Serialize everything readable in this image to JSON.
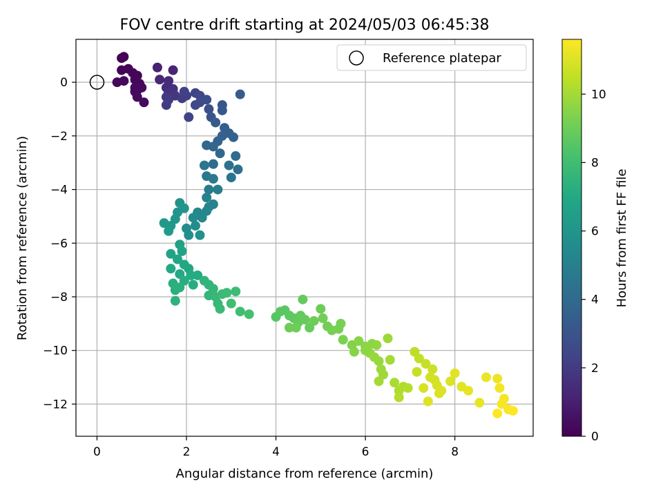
{
  "chart_data": {
    "type": "scatter",
    "title": "FOV centre drift starting at 2024/05/03 06:45:38",
    "xlabel": "Angular distance from reference (arcmin)",
    "ylabel": "Rotation from reference (arcmin)",
    "xlim": [
      -0.47,
      9.75
    ],
    "ylim": [
      -13.2,
      1.6
    ],
    "xticks": [
      0,
      2,
      4,
      6,
      8
    ],
    "xtick_labels": [
      "0",
      "2",
      "4",
      "6",
      "8"
    ],
    "yticks": [
      0,
      -2,
      -4,
      -6,
      -8,
      -10,
      -12
    ],
    "ytick_labels": [
      "0",
      "−2",
      "−4",
      "−6",
      "−8",
      "−10",
      "−12"
    ],
    "grid": true,
    "legend": {
      "placement": "top-right",
      "label": "Reference platepar"
    },
    "reference_point": {
      "x": 0,
      "y": 0
    },
    "colorbar": {
      "label": "Hours from first FF file",
      "range": [
        0,
        11.6
      ],
      "ticks": [
        0,
        2,
        4,
        6,
        8,
        10
      ],
      "tick_labels": [
        "0",
        "2",
        "4",
        "6",
        "8",
        "10"
      ],
      "colormap": "viridis",
      "colors": [
        "#440154",
        "#482475",
        "#414487",
        "#355f8d",
        "#2a788e",
        "#21918c",
        "#22a884",
        "#44bf70",
        "#7ad151",
        "#bddf26",
        "#fde725"
      ]
    },
    "points": [
      [
        0.6,
        0.95,
        0.05
      ],
      [
        0.55,
        0.9,
        0.05
      ],
      [
        0.7,
        0.5,
        0.1
      ],
      [
        0.55,
        0.45,
        0.1
      ],
      [
        0.8,
        0.35,
        0.15
      ],
      [
        0.9,
        0.25,
        0.15
      ],
      [
        0.6,
        0.05,
        0.2
      ],
      [
        0.45,
        0.0,
        0.2
      ],
      [
        0.85,
        0.1,
        0.2
      ],
      [
        0.95,
        -0.05,
        0.25
      ],
      [
        0.9,
        -0.3,
        0.25
      ],
      [
        0.85,
        -0.35,
        0.3
      ],
      [
        0.9,
        -0.55,
        0.3
      ],
      [
        1.05,
        -0.75,
        0.35
      ],
      [
        1.0,
        -0.2,
        0.3
      ],
      [
        0.85,
        -0.2,
        0.3
      ],
      [
        1.35,
        0.55,
        1.1
      ],
      [
        1.7,
        0.45,
        1.2
      ],
      [
        1.4,
        0.1,
        1.3
      ],
      [
        1.6,
        0.05,
        1.4
      ],
      [
        1.55,
        -0.2,
        1.5
      ],
      [
        1.7,
        -0.25,
        1.6
      ],
      [
        1.6,
        -0.4,
        1.7
      ],
      [
        1.75,
        -0.5,
        1.8
      ],
      [
        1.55,
        -0.55,
        1.9
      ],
      [
        1.6,
        -0.65,
        2.0
      ],
      [
        1.55,
        -0.85,
        2.0
      ],
      [
        1.9,
        -0.6,
        2.1
      ],
      [
        2.0,
        -0.5,
        2.1
      ],
      [
        1.95,
        -0.35,
        2.2
      ],
      [
        2.05,
        -1.3,
        2.3
      ],
      [
        2.2,
        -0.4,
        2.3
      ],
      [
        2.3,
        -0.5,
        2.4
      ],
      [
        2.2,
        -0.85,
        2.5
      ],
      [
        2.3,
        -0.75,
        2.6
      ],
      [
        2.45,
        -0.65,
        2.7
      ],
      [
        2.5,
        -1.0,
        2.8
      ],
      [
        2.55,
        -1.3,
        3.0
      ],
      [
        2.8,
        -0.85,
        3.1
      ],
      [
        2.8,
        -1.05,
        3.2
      ],
      [
        2.65,
        -1.5,
        3.3
      ],
      [
        3.2,
        -0.45,
        3.3
      ],
      [
        2.85,
        -1.7,
        3.4
      ],
      [
        2.95,
        -1.9,
        3.5
      ],
      [
        3.05,
        -2.05,
        3.6
      ],
      [
        2.8,
        -2.0,
        3.6
      ],
      [
        2.7,
        -2.2,
        3.7
      ],
      [
        2.6,
        -2.4,
        3.8
      ],
      [
        2.45,
        -2.35,
        3.8
      ],
      [
        2.75,
        -2.65,
        3.9
      ],
      [
        2.6,
        -3.05,
        4.0
      ],
      [
        3.1,
        -2.75,
        4.1
      ],
      [
        3.15,
        -3.25,
        4.2
      ],
      [
        2.95,
        -3.1,
        4.3
      ],
      [
        3.0,
        -3.55,
        4.4
      ],
      [
        2.4,
        -3.1,
        4.5
      ],
      [
        2.45,
        -3.5,
        4.6
      ],
      [
        2.6,
        -3.6,
        4.7
      ],
      [
        2.5,
        -4.0,
        4.8
      ],
      [
        2.7,
        -4.0,
        4.9
      ],
      [
        2.45,
        -4.3,
        5.0
      ],
      [
        2.5,
        -4.65,
        5.2
      ],
      [
        2.6,
        -4.55,
        5.2
      ],
      [
        2.45,
        -4.8,
        5.3
      ],
      [
        2.25,
        -4.85,
        5.4
      ],
      [
        2.35,
        -5.05,
        5.4
      ],
      [
        2.15,
        -5.05,
        5.5
      ],
      [
        2.2,
        -5.35,
        5.6
      ],
      [
        2.0,
        -5.45,
        5.6
      ],
      [
        2.05,
        -5.7,
        5.7
      ],
      [
        2.3,
        -5.7,
        5.8
      ],
      [
        1.85,
        -4.5,
        5.9
      ],
      [
        1.95,
        -4.7,
        6.0
      ],
      [
        1.8,
        -4.85,
        6.0
      ],
      [
        1.75,
        -5.1,
        6.1
      ],
      [
        1.5,
        -5.25,
        6.2
      ],
      [
        1.65,
        -5.35,
        6.2
      ],
      [
        1.6,
        -5.55,
        6.3
      ],
      [
        1.85,
        -6.05,
        6.6
      ],
      [
        1.9,
        -6.3,
        6.7
      ],
      [
        1.65,
        -6.4,
        6.7
      ],
      [
        1.8,
        -6.6,
        6.8
      ],
      [
        1.95,
        -6.8,
        6.9
      ],
      [
        2.05,
        -6.95,
        6.9
      ],
      [
        1.65,
        -6.95,
        7.0
      ],
      [
        1.85,
        -7.15,
        7.0
      ],
      [
        2.1,
        -7.2,
        7.1
      ],
      [
        2.25,
        -7.2,
        7.1
      ],
      [
        1.95,
        -7.4,
        7.2
      ],
      [
        2.15,
        -7.55,
        7.2
      ],
      [
        1.85,
        -7.65,
        7.3
      ],
      [
        1.7,
        -7.5,
        7.3
      ],
      [
        1.75,
        -7.75,
        7.3
      ],
      [
        1.75,
        -8.15,
        7.4
      ],
      [
        2.4,
        -7.4,
        7.5
      ],
      [
        2.5,
        -7.55,
        7.5
      ],
      [
        2.5,
        -7.95,
        7.6
      ],
      [
        2.6,
        -7.7,
        7.6
      ],
      [
        2.65,
        -8.0,
        7.7
      ],
      [
        2.7,
        -8.25,
        7.7
      ],
      [
        2.8,
        -7.9,
        7.8
      ],
      [
        2.75,
        -8.45,
        7.8
      ],
      [
        2.9,
        -7.85,
        7.9
      ],
      [
        3.1,
        -7.8,
        7.9
      ],
      [
        3.0,
        -8.25,
        8.0
      ],
      [
        3.2,
        -8.55,
        8.0
      ],
      [
        3.4,
        -8.65,
        8.1
      ],
      [
        4.0,
        -8.75,
        8.5
      ],
      [
        4.1,
        -8.55,
        8.6
      ],
      [
        4.2,
        -8.5,
        8.6
      ],
      [
        4.3,
        -8.7,
        8.7
      ],
      [
        4.4,
        -8.8,
        8.7
      ],
      [
        4.5,
        -8.95,
        8.8
      ],
      [
        4.6,
        -8.1,
        8.8
      ],
      [
        4.65,
        -8.85,
        8.9
      ],
      [
        4.75,
        -9.15,
        8.9
      ],
      [
        4.85,
        -8.9,
        9.0
      ],
      [
        5.0,
        -8.45,
        9.0
      ],
      [
        5.05,
        -8.8,
        9.1
      ],
      [
        5.15,
        -9.1,
        9.1
      ],
      [
        4.45,
        -9.15,
        9.0
      ],
      [
        4.3,
        -9.15,
        9.0
      ],
      [
        4.55,
        -8.7,
        8.8
      ],
      [
        5.25,
        -9.25,
        9.2
      ],
      [
        5.4,
        -9.2,
        9.2
      ],
      [
        5.5,
        -9.6,
        9.3
      ],
      [
        5.45,
        -9.0,
        9.2
      ],
      [
        5.7,
        -9.8,
        9.4
      ],
      [
        5.85,
        -9.65,
        9.5
      ],
      [
        6.0,
        -9.85,
        9.6
      ],
      [
        6.15,
        -9.75,
        9.6
      ],
      [
        6.25,
        -9.8,
        9.7
      ],
      [
        6.1,
        -10.1,
        9.7
      ],
      [
        6.2,
        -10.25,
        9.8
      ],
      [
        6.3,
        -10.4,
        9.8
      ],
      [
        6.0,
        -10.0,
        9.6
      ],
      [
        5.75,
        -10.05,
        9.5
      ],
      [
        6.35,
        -10.7,
        9.9
      ],
      [
        6.4,
        -10.9,
        9.9
      ],
      [
        6.3,
        -11.15,
        10.0
      ],
      [
        6.55,
        -10.35,
        10.0
      ],
      [
        6.5,
        -9.55,
        9.9
      ],
      [
        6.65,
        -11.2,
        10.1
      ],
      [
        6.75,
        -11.5,
        10.2
      ],
      [
        6.85,
        -11.35,
        10.2
      ],
      [
        6.95,
        -11.4,
        10.3
      ],
      [
        6.75,
        -11.75,
        10.3
      ],
      [
        7.1,
        -10.05,
        10.4
      ],
      [
        7.2,
        -10.3,
        10.5
      ],
      [
        7.35,
        -10.5,
        10.6
      ],
      [
        7.5,
        -10.7,
        10.7
      ],
      [
        7.45,
        -11.0,
        10.8
      ],
      [
        7.55,
        -11.1,
        10.8
      ],
      [
        7.6,
        -11.3,
        10.9
      ],
      [
        7.7,
        -11.5,
        11.0
      ],
      [
        7.4,
        -11.9,
        11.0
      ],
      [
        7.9,
        -11.15,
        11.0
      ],
      [
        8.0,
        -10.85,
        11.1
      ],
      [
        8.15,
        -11.35,
        11.1
      ],
      [
        8.3,
        -11.5,
        11.2
      ],
      [
        8.55,
        -11.95,
        11.2
      ],
      [
        8.7,
        -11.0,
        11.3
      ],
      [
        8.95,
        -11.05,
        11.3
      ],
      [
        9.0,
        -11.4,
        11.4
      ],
      [
        9.1,
        -11.8,
        11.4
      ],
      [
        9.05,
        -12.0,
        11.5
      ],
      [
        9.2,
        -12.2,
        11.5
      ],
      [
        9.3,
        -12.25,
        11.6
      ],
      [
        8.95,
        -12.35,
        11.6
      ],
      [
        7.3,
        -11.4,
        10.9
      ],
      [
        7.15,
        -10.8,
        10.6
      ],
      [
        7.65,
        -11.6,
        11.0
      ]
    ]
  }
}
